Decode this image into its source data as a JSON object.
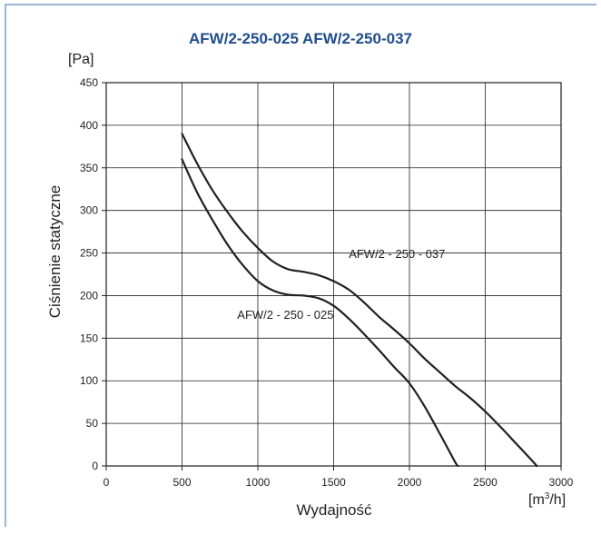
{
  "chart_data": {
    "type": "line",
    "title": "AFW/2-250-025 AFW/2-250-037",
    "title_color": "#1f4e8c",
    "frame_color": "#5b87b5",
    "xlabel": "Wydajność",
    "xunit": "[m³/h]",
    "ylabel": "Ciśnienie statyczne",
    "yunit": "[Pa]",
    "xlim": [
      0,
      3000
    ],
    "ylim": [
      0,
      450
    ],
    "xticks": [
      "0",
      "500",
      "1000",
      "1500",
      "2000",
      "2500",
      "3000"
    ],
    "yticks": [
      "0",
      "50",
      "100",
      "150",
      "200",
      "250",
      "300",
      "350",
      "400",
      "450"
    ],
    "grid": true,
    "series": [
      {
        "name": "AFW/2 - 250 - 037",
        "x": [
          500,
          600,
          700,
          800,
          900,
          1000,
          1100,
          1200,
          1300,
          1400,
          1500,
          1600,
          1700,
          1800,
          1900,
          2000,
          2100,
          2200,
          2300,
          2400,
          2500,
          2600,
          2700,
          2800,
          2840
        ],
        "y": [
          390,
          355,
          324,
          298,
          275,
          256,
          240,
          231,
          228,
          224,
          217,
          207,
          192,
          175,
          160,
          144,
          126,
          110,
          94,
          80,
          64,
          46,
          27,
          8,
          0
        ]
      },
      {
        "name": "AFW/2 - 250 - 025",
        "x": [
          500,
          600,
          700,
          800,
          900,
          1000,
          1100,
          1200,
          1300,
          1400,
          1500,
          1600,
          1700,
          1800,
          1900,
          2000,
          2100,
          2200,
          2300,
          2320
        ],
        "y": [
          360,
          321,
          289,
          260,
          236,
          217,
          206,
          201,
          200,
          197,
          188,
          173,
          155,
          136,
          116,
          97,
          70,
          38,
          5,
          0
        ]
      }
    ]
  }
}
